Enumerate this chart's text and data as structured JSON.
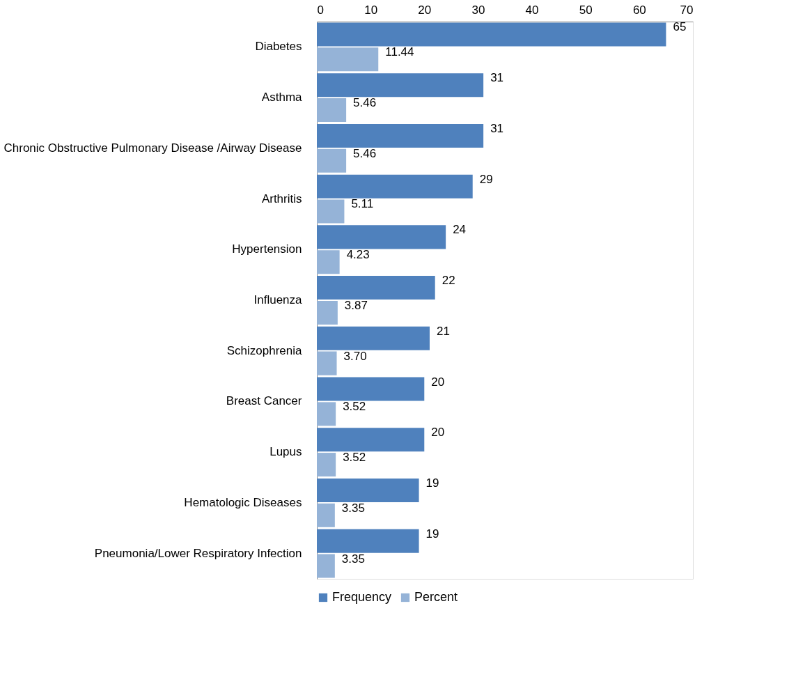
{
  "chart_data": {
    "type": "bar",
    "orientation": "horizontal",
    "categories": [
      "Diabetes",
      "Asthma",
      "Chronic Obstructive Pulmonary Disease /Airway Disease",
      "Arthritis",
      "Hypertension",
      "Influenza",
      "Schizophrenia",
      "Breast Cancer",
      "Lupus",
      "Hematologic Diseases",
      "Pneumonia/Lower Respiratory Infection"
    ],
    "series": [
      {
        "name": "Frequency",
        "color": "#4f81bd",
        "values": [
          65,
          31,
          31,
          29,
          24,
          22,
          21,
          20,
          20,
          19,
          19
        ],
        "value_labels": [
          "65",
          "31",
          "31",
          "29",
          "24",
          "22",
          "21",
          "20",
          "20",
          "19",
          "19"
        ]
      },
      {
        "name": "Percent",
        "color": "#95b3d7",
        "values": [
          11.44,
          5.46,
          5.46,
          5.11,
          4.23,
          3.87,
          3.7,
          3.52,
          3.52,
          3.35,
          3.35
        ],
        "value_labels": [
          "11.44",
          "5.46",
          "5.46",
          "5.11",
          "4.23",
          "3.87",
          "3.70",
          "3.52",
          "3.52",
          "3.35",
          "3.35"
        ]
      }
    ],
    "xlim": [
      0,
      70
    ],
    "xticks": [
      0,
      10,
      20,
      30,
      40,
      50,
      60,
      70
    ],
    "grid": false,
    "legend": "bottom"
  }
}
